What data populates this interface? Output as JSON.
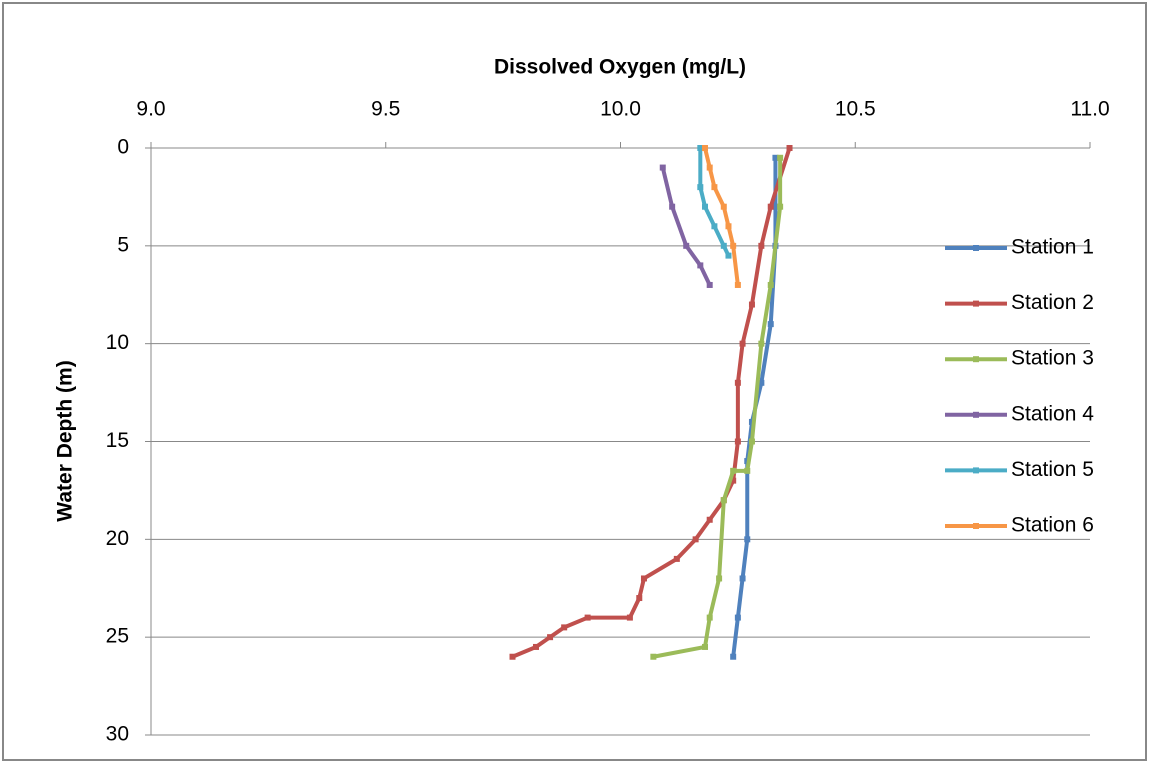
{
  "chart_data": {
    "type": "line",
    "title": "Dissolved Oxygen (mg/L)",
    "y_label": "Water Depth (m)",
    "xlim": [
      9.0,
      11.0
    ],
    "xticks": [
      {
        "value": 9.0,
        "label": "9.0"
      },
      {
        "value": 9.5,
        "label": "9.5"
      },
      {
        "value": 10.0,
        "label": "10.0"
      },
      {
        "value": 10.5,
        "label": "10.5"
      },
      {
        "value": 11.0,
        "label": "11.0"
      }
    ],
    "ylim": [
      0,
      30
    ],
    "yticks": [
      0,
      5,
      10,
      15,
      20,
      25,
      30
    ],
    "y_inverted": true,
    "grid": true,
    "legend": "right",
    "series": [
      {
        "name": "Station 1",
        "color": "#4f81bd",
        "x": [
          10.33,
          10.33,
          10.33,
          10.32,
          10.3,
          10.28,
          10.27,
          10.27,
          10.26,
          10.25,
          10.24
        ],
        "values": [
          0.5,
          3,
          5,
          9,
          12,
          14,
          16,
          20,
          22,
          24,
          26
        ]
      },
      {
        "name": "Station 2",
        "color": "#c0504d",
        "x": [
          10.36,
          10.32,
          10.3,
          10.28,
          10.26,
          10.25,
          10.25,
          10.24,
          10.22,
          10.19,
          10.16,
          10.12,
          10.05,
          10.04,
          10.02,
          9.93,
          9.88,
          9.85,
          9.82,
          9.77
        ],
        "values": [
          0,
          3,
          5,
          8,
          10,
          12,
          15,
          17,
          18,
          19,
          20,
          21,
          22,
          23,
          24,
          24,
          24.5,
          25,
          25.5,
          26
        ]
      },
      {
        "name": "Station 3",
        "color": "#9bbb59",
        "x": [
          10.34,
          10.34,
          10.32,
          10.3,
          10.28,
          10.27,
          10.24,
          10.22,
          10.21,
          10.19,
          10.18,
          10.07
        ],
        "values": [
          0.5,
          3,
          7,
          10,
          15,
          16.5,
          16.5,
          18,
          22,
          24,
          25.5,
          26
        ]
      },
      {
        "name": "Station 4",
        "color": "#8064a2",
        "x": [
          10.09,
          10.11,
          10.14,
          10.17,
          10.19
        ],
        "values": [
          1,
          3,
          5,
          6,
          7
        ]
      },
      {
        "name": "Station 5",
        "color": "#4bacc6",
        "x": [
          10.17,
          10.17,
          10.18,
          10.2,
          10.22,
          10.23
        ],
        "values": [
          0,
          2,
          3,
          4,
          5,
          5.5
        ]
      },
      {
        "name": "Station 6",
        "color": "#f79646",
        "x": [
          10.18,
          10.19,
          10.2,
          10.22,
          10.23,
          10.24,
          10.25
        ],
        "values": [
          0,
          1,
          2,
          3,
          4,
          5,
          7
        ]
      }
    ]
  }
}
